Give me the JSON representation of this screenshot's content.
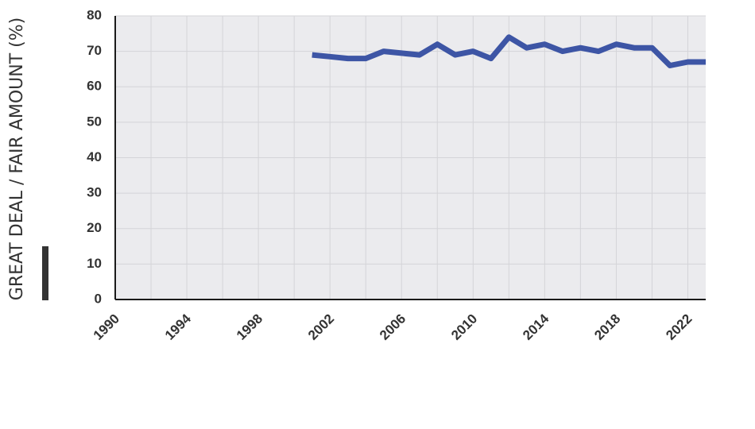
{
  "chart_data": {
    "type": "line",
    "title": "",
    "xlabel": "",
    "ylabel": "GREAT DEAL / FAIR AMOUNT (%)",
    "xlim": [
      1990,
      2023
    ],
    "ylim": [
      0,
      80
    ],
    "x_ticks": [
      "1990",
      "1994",
      "1998",
      "2002",
      "2006",
      "2010",
      "2014",
      "2018",
      "2022"
    ],
    "y_ticks": [
      "0",
      "10",
      "20",
      "30",
      "40",
      "50",
      "60",
      "70",
      "80"
    ],
    "grid": true,
    "legend": "none",
    "series": [
      {
        "color": "#3d55a5",
        "x": [
          2001,
          2002,
          2003,
          2004,
          2005,
          2006,
          2007,
          2008,
          2009,
          2010,
          2011,
          2012,
          2013,
          2014,
          2015,
          2016,
          2017,
          2018,
          2019,
          2020,
          2021,
          2022,
          2023
        ],
        "y": [
          69,
          68.5,
          68,
          68,
          70,
          69.5,
          69,
          72,
          69,
          70,
          68,
          74,
          71,
          72,
          70,
          71,
          70,
          72,
          71,
          71,
          66,
          67,
          67
        ]
      }
    ]
  },
  "colors": {
    "plot_background": "#ebebee",
    "grid": "#d4d4d8",
    "axis": "#1a1a1a",
    "text": "#333333",
    "marker_bar": "#333333"
  }
}
